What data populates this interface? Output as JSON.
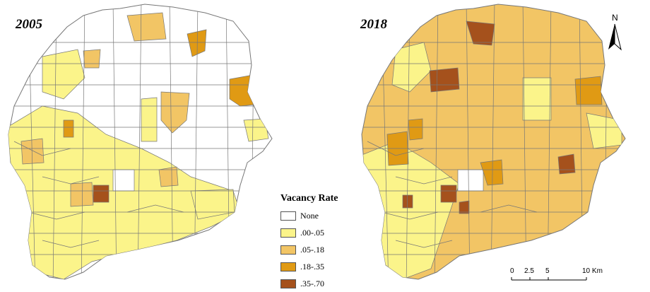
{
  "panels": {
    "left_year": "2005",
    "right_year": "2018"
  },
  "legend": {
    "title": "Vacancy Rate",
    "items": [
      {
        "label": "None",
        "color": "#ffffff"
      },
      {
        "label": ".00-.05",
        "color": "#fbf48a"
      },
      {
        "label": ".05-.18",
        "color": "#f2c565"
      },
      {
        "label": ".18-.35",
        "color": "#e09a14"
      },
      {
        "label": ".35-.70",
        "color": "#a5511c"
      }
    ]
  },
  "north_arrow": {
    "letter": "N"
  },
  "scale_bar": {
    "ticks": [
      "0",
      "2.5",
      "5",
      "10 Km"
    ]
  },
  "colors": {
    "boundary": "#777777",
    "none": "#ffffff",
    "low": "#fbf48a",
    "mid": "#f2c565",
    "high": "#e09a14",
    "max": "#a5511c"
  }
}
